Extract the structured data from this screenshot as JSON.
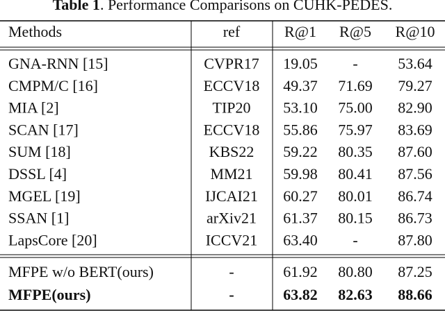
{
  "title": {
    "label": "Table 1",
    "text": ". Performance Comparisons on CUHK-PEDES."
  },
  "table": {
    "header": [
      "Methods",
      "ref",
      "R@1",
      "R@5",
      "R@10"
    ],
    "groups": [
      [
        [
          "GNA-RNN [15]",
          "CVPR17",
          "19.05",
          "-",
          "53.64"
        ],
        [
          "CMPM/C [16]",
          "ECCV18",
          "49.37",
          "71.69",
          "79.27"
        ],
        [
          "MIA [2]",
          "TIP20",
          "53.10",
          "75.00",
          "82.90"
        ],
        [
          "SCAN [17]",
          "ECCV18",
          "55.86",
          "75.97",
          "83.69"
        ],
        [
          "SUM [18]",
          "KBS22",
          "59.22",
          "80.35",
          "87.60"
        ],
        [
          "DSSL [4]",
          "MM21",
          "59.98",
          "80.41",
          "87.56"
        ],
        [
          "MGEL [19]",
          "IJCAI21",
          "60.27",
          "80.01",
          "86.74"
        ],
        [
          "SSAN [1]",
          "arXiv21",
          "61.37",
          "80.15",
          "86.73"
        ],
        [
          "LapsCore [20]",
          "ICCV21",
          "63.40",
          "-",
          "87.80"
        ]
      ],
      [
        [
          "MFPE w/o BERT(ours)",
          "-",
          "61.92",
          "80.80",
          "87.25"
        ],
        [
          "MFPE(ours)",
          "-",
          "63.82",
          "82.63",
          "88.66"
        ]
      ]
    ]
  }
}
